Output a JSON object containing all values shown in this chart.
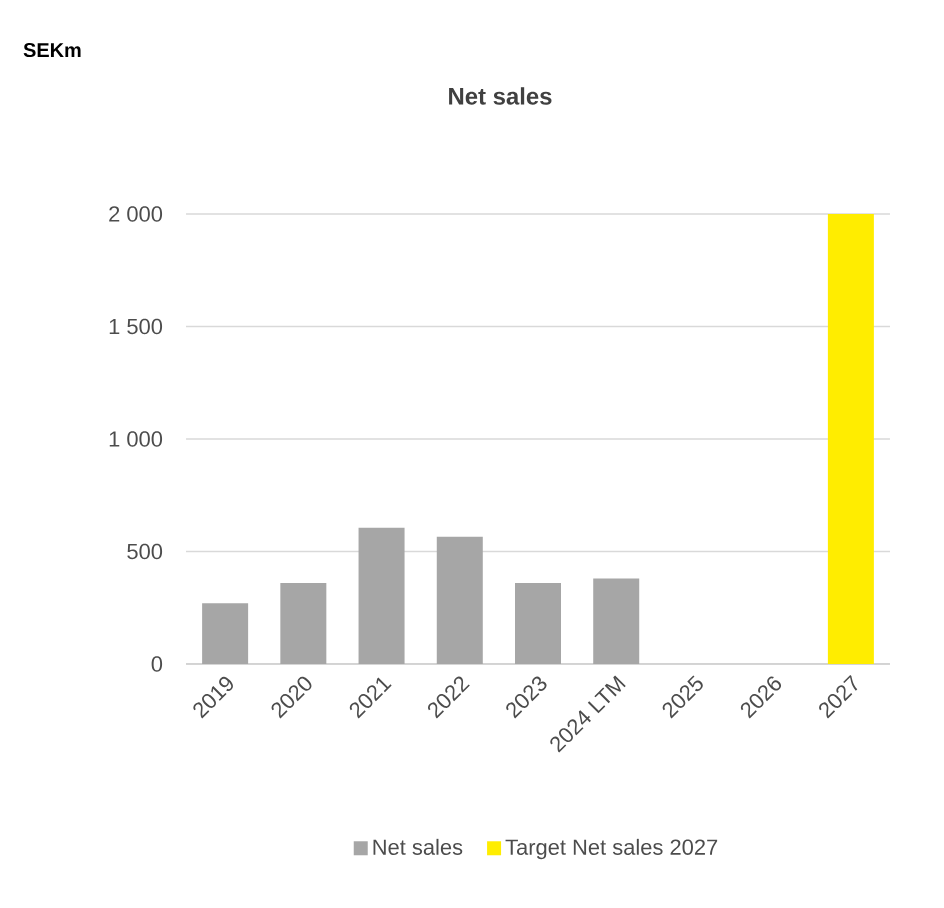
{
  "chart_data": {
    "type": "bar",
    "title": "Net sales",
    "annotations": [
      "SEKm"
    ],
    "categories": [
      "2019",
      "2020",
      "2021",
      "2022",
      "2023",
      "2024 LTM",
      "2025",
      "2026",
      "2027"
    ],
    "series": [
      {
        "name": "Net sales",
        "color": "#a6a6a6",
        "values": [
          270,
          360,
          605,
          565,
          360,
          380,
          null,
          null,
          null
        ]
      },
      {
        "name": "Target Net sales 2027",
        "color": "#ffed00",
        "values": [
          null,
          null,
          null,
          null,
          null,
          null,
          null,
          null,
          2000
        ]
      }
    ],
    "ylim": [
      0,
      2000
    ],
    "yticks": [
      0,
      500,
      {
        "value": 1000,
        "label": "1 000"
      },
      {
        "value": 1500,
        "label": "1 500"
      },
      {
        "value": 2000,
        "label": "2 000"
      }
    ],
    "grid": "y",
    "legend": "bottom"
  }
}
